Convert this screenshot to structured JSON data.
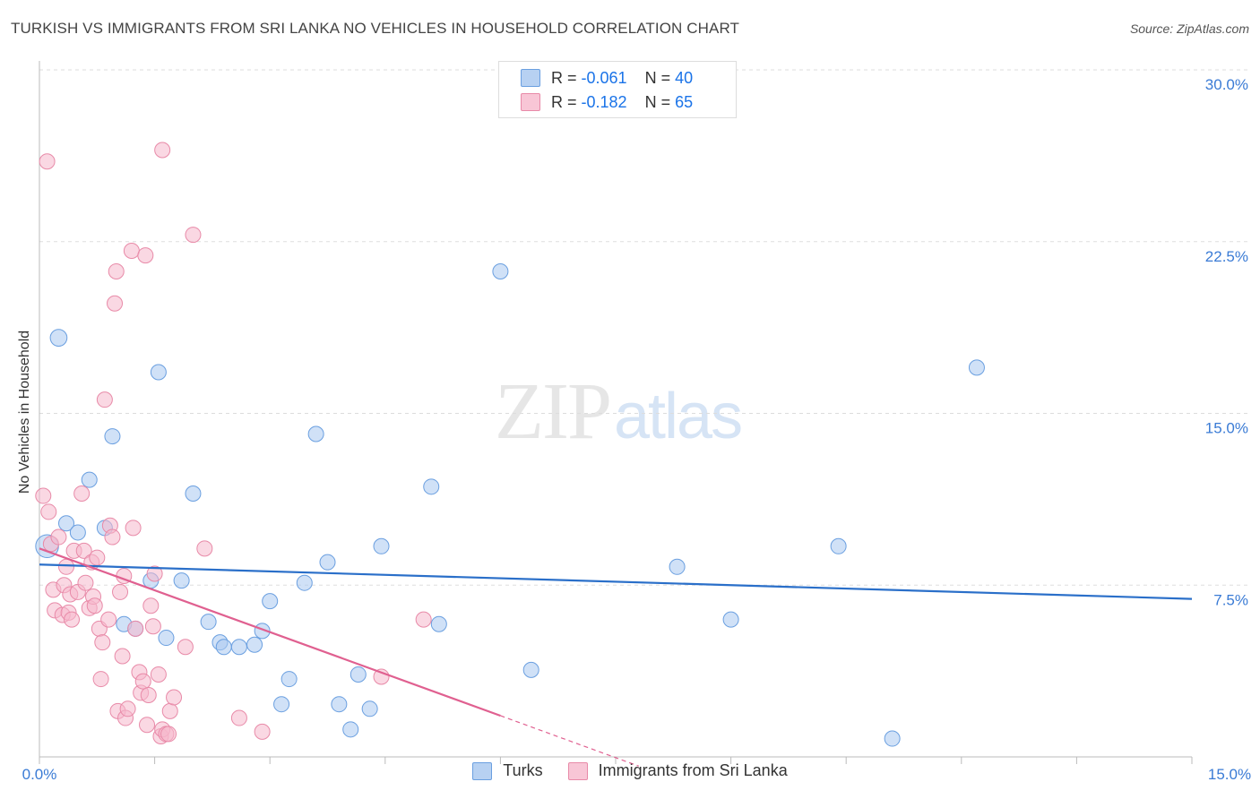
{
  "title": "TURKISH VS IMMIGRANTS FROM SRI LANKA NO VEHICLES IN HOUSEHOLD CORRELATION CHART",
  "source": "Source: ZipAtlas.com",
  "watermark": {
    "zip": "ZIP",
    "atlas": "atlas"
  },
  "legend": {
    "rows": [
      {
        "r_label": "R =",
        "r_value": "-0.061",
        "n_label": "N =",
        "n_value": "40"
      },
      {
        "r_label": "R =",
        "r_value": "-0.182",
        "n_label": "N =",
        "n_value": "65"
      }
    ]
  },
  "bottom_legend": {
    "s1": "Turks",
    "s2": "Immigrants from Sri Lanka"
  },
  "colors": {
    "turks_fill": "#aac8f0",
    "turks_stroke": "#6a9fe0",
    "turks_line": "#2a6fc9",
    "sl_fill": "#f6b8cc",
    "sl_stroke": "#e88aa8",
    "sl_line": "#e06090",
    "axis_text": "#3a7bd5",
    "grid": "#dddddd"
  },
  "chart_data": {
    "type": "scatter",
    "title": "TURKISH VS IMMIGRANTS FROM SRI LANKA NO VEHICLES IN HOUSEHOLD CORRELATION CHART",
    "xlabel": "",
    "ylabel": "No Vehicles in Household",
    "xlim": [
      0,
      15
    ],
    "ylim": [
      0,
      30
    ],
    "x_tick_labels": [
      "0.0%",
      "15.0%"
    ],
    "y_ticks": [
      7.5,
      15.0,
      22.5,
      30.0
    ],
    "y_tick_labels": [
      "7.5%",
      "15.0%",
      "22.5%",
      "30.0%"
    ],
    "series": [
      {
        "name": "Turks",
        "r": -0.061,
        "n": 40,
        "trend": {
          "x0": 0,
          "y0": 8.4,
          "x1": 15,
          "y1": 6.9
        },
        "points": [
          [
            0.1,
            9.2,
            1.5
          ],
          [
            0.25,
            18.3,
            1.1
          ],
          [
            0.65,
            12.1,
            1
          ],
          [
            0.35,
            10.2,
            1
          ],
          [
            0.5,
            9.8,
            1
          ],
          [
            0.85,
            10.0,
            1
          ],
          [
            0.95,
            14.0,
            1
          ],
          [
            1.1,
            5.8,
            1
          ],
          [
            1.25,
            5.6,
            1
          ],
          [
            1.45,
            7.7,
            1
          ],
          [
            1.55,
            16.8,
            1
          ],
          [
            1.65,
            5.2,
            1
          ],
          [
            1.85,
            7.7,
            1
          ],
          [
            2.0,
            11.5,
            1
          ],
          [
            2.2,
            5.9,
            1
          ],
          [
            2.35,
            5.0,
            1
          ],
          [
            2.4,
            4.8,
            1
          ],
          [
            2.6,
            4.8,
            1
          ],
          [
            2.8,
            4.9,
            1
          ],
          [
            2.9,
            5.5,
            1
          ],
          [
            3.0,
            6.8,
            1
          ],
          [
            3.15,
            2.3,
            1
          ],
          [
            3.25,
            3.4,
            1
          ],
          [
            3.45,
            7.6,
            1
          ],
          [
            3.6,
            14.1,
            1
          ],
          [
            3.75,
            8.5,
            1
          ],
          [
            3.9,
            2.3,
            1
          ],
          [
            4.05,
            1.2,
            1
          ],
          [
            4.15,
            3.6,
            1
          ],
          [
            4.3,
            2.1,
            1
          ],
          [
            4.45,
            9.2,
            1
          ],
          [
            5.1,
            11.8,
            1
          ],
          [
            5.2,
            5.8,
            1
          ],
          [
            6.0,
            21.2,
            1
          ],
          [
            6.4,
            3.8,
            1
          ],
          [
            8.3,
            8.3,
            1
          ],
          [
            9.0,
            6.0,
            1
          ],
          [
            10.4,
            9.2,
            1
          ],
          [
            11.1,
            0.8,
            1
          ],
          [
            12.2,
            17.0,
            1
          ]
        ]
      },
      {
        "name": "Immigrants from Sri Lanka",
        "r": -0.182,
        "n": 65,
        "trend": {
          "x0": 0,
          "y0": 9.1,
          "x1": 6.0,
          "y1": 1.8
        },
        "trend_dash": {
          "x0": 6.0,
          "y0": 1.8,
          "x1": 7.8,
          "y1": -0.4
        },
        "points": [
          [
            0.05,
            11.4,
            1
          ],
          [
            0.1,
            26.0,
            1
          ],
          [
            0.12,
            10.7,
            1
          ],
          [
            0.15,
            9.3,
            1
          ],
          [
            0.18,
            7.3,
            1
          ],
          [
            0.2,
            6.4,
            1
          ],
          [
            0.25,
            9.6,
            1
          ],
          [
            0.3,
            6.2,
            1
          ],
          [
            0.32,
            7.5,
            1
          ],
          [
            0.35,
            8.3,
            1
          ],
          [
            0.38,
            6.3,
            1
          ],
          [
            0.4,
            7.1,
            1
          ],
          [
            0.42,
            6.0,
            1
          ],
          [
            0.45,
            9.0,
            1
          ],
          [
            0.5,
            7.2,
            1
          ],
          [
            0.55,
            11.5,
            1
          ],
          [
            0.58,
            9.0,
            1
          ],
          [
            0.6,
            7.6,
            1
          ],
          [
            0.65,
            6.5,
            1
          ],
          [
            0.68,
            8.5,
            1
          ],
          [
            0.7,
            7.0,
            1
          ],
          [
            0.72,
            6.6,
            1
          ],
          [
            0.75,
            8.7,
            1
          ],
          [
            0.78,
            5.6,
            1
          ],
          [
            0.8,
            3.4,
            1
          ],
          [
            0.82,
            5.0,
            1
          ],
          [
            0.85,
            15.6,
            1
          ],
          [
            0.9,
            6.0,
            1
          ],
          [
            0.92,
            10.1,
            1
          ],
          [
            0.95,
            9.6,
            1
          ],
          [
            0.98,
            19.8,
            1
          ],
          [
            1.0,
            21.2,
            1
          ],
          [
            1.02,
            2.0,
            1
          ],
          [
            1.05,
            7.2,
            1
          ],
          [
            1.08,
            4.4,
            1
          ],
          [
            1.1,
            7.9,
            1
          ],
          [
            1.12,
            1.7,
            1
          ],
          [
            1.15,
            2.1,
            1
          ],
          [
            1.2,
            22.1,
            1
          ],
          [
            1.22,
            10.0,
            1
          ],
          [
            1.25,
            5.6,
            1
          ],
          [
            1.3,
            3.7,
            1
          ],
          [
            1.32,
            2.8,
            1
          ],
          [
            1.35,
            3.3,
            1
          ],
          [
            1.38,
            21.9,
            1
          ],
          [
            1.4,
            1.4,
            1
          ],
          [
            1.42,
            2.7,
            1
          ],
          [
            1.45,
            6.6,
            1
          ],
          [
            1.48,
            5.7,
            1
          ],
          [
            1.5,
            8.0,
            1
          ],
          [
            1.55,
            3.6,
            1
          ],
          [
            1.58,
            0.9,
            1
          ],
          [
            1.6,
            1.2,
            1
          ],
          [
            1.65,
            1.0,
            1
          ],
          [
            1.7,
            2.0,
            1
          ],
          [
            1.75,
            2.6,
            1
          ],
          [
            1.6,
            26.5,
            1
          ],
          [
            1.9,
            4.8,
            1
          ],
          [
            2.0,
            22.8,
            1
          ],
          [
            2.15,
            9.1,
            1
          ],
          [
            2.6,
            1.7,
            1
          ],
          [
            2.9,
            1.1,
            1
          ],
          [
            4.45,
            3.5,
            1
          ],
          [
            5.0,
            6.0,
            1
          ],
          [
            1.68,
            1.0,
            1
          ]
        ]
      }
    ]
  }
}
